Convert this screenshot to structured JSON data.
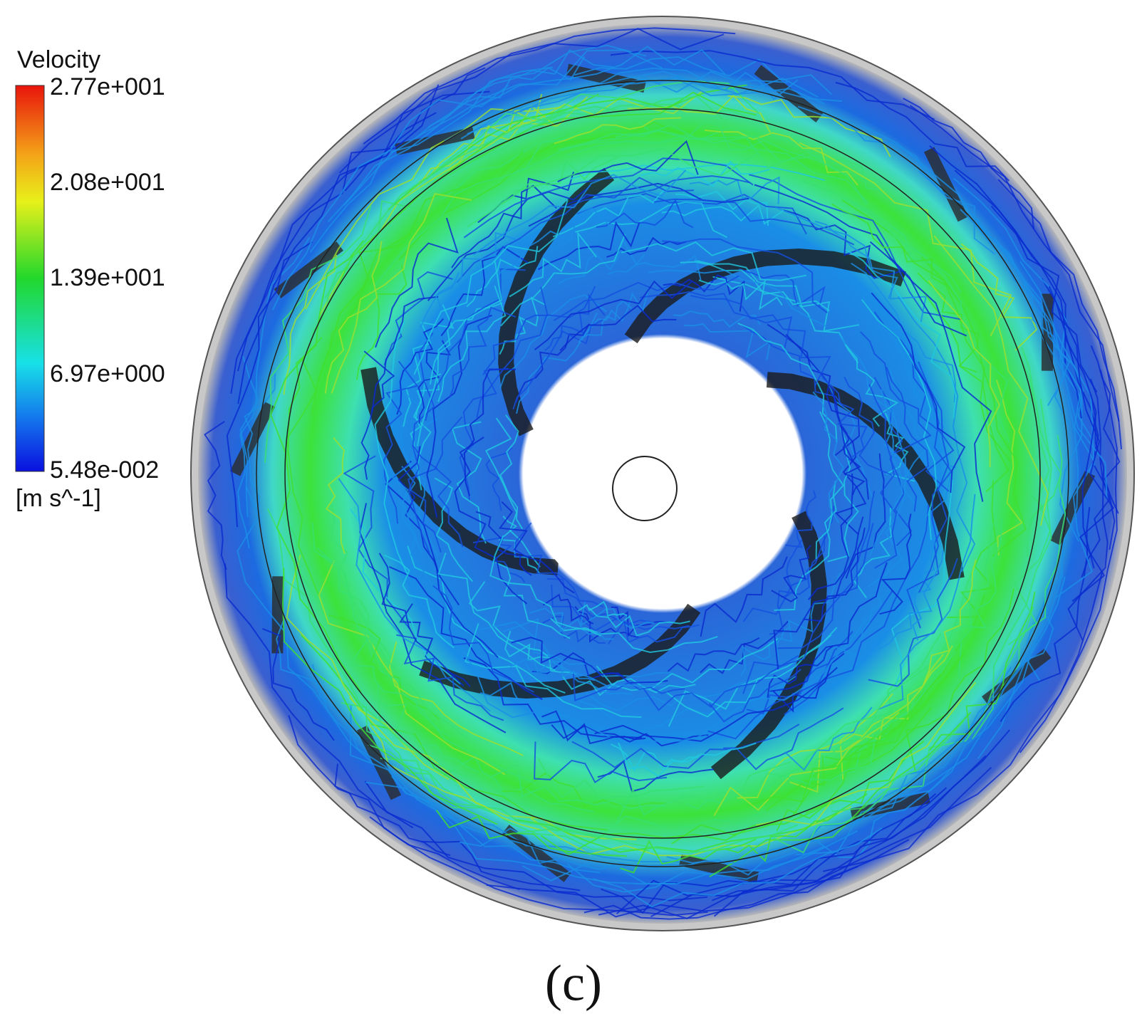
{
  "legend": {
    "title": "Velocity",
    "ticks": [
      "2.77e+001",
      "2.08e+001",
      "1.39e+001",
      "6.97e+000",
      "5.48e-002"
    ],
    "unit": "[m s^-1]"
  },
  "caption": "(c)"
}
